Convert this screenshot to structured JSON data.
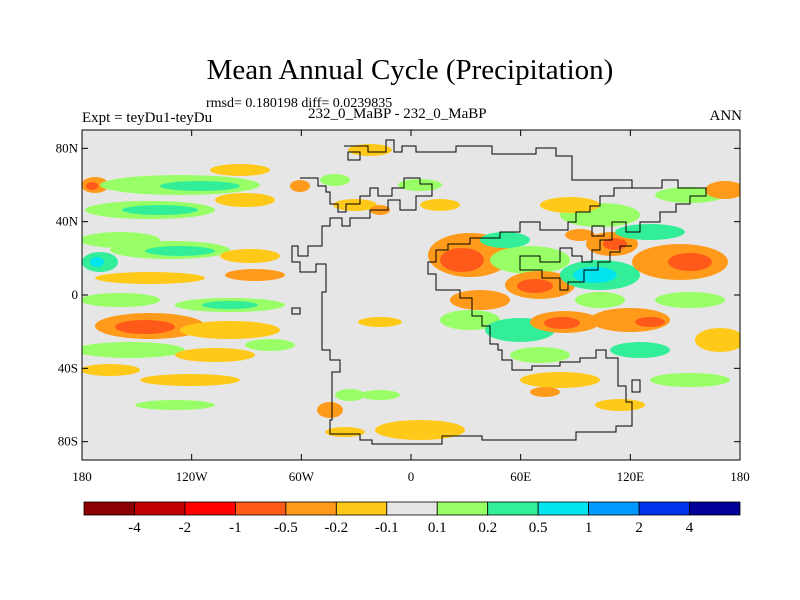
{
  "title": "Mean Annual Cycle (Precipitation)",
  "stats_line": "rmsd= 0.180198 diff= 0.0239835",
  "experiment_label": "Expt = teyDu1-teyDu",
  "comparison_label": "232_0_MaBP - 232_0_MaBP",
  "season": "ANN",
  "map": {
    "background_color": "#e6e6e6",
    "y_ticks": [
      {
        "label": "80N",
        "lat": 80
      },
      {
        "label": "40N",
        "lat": 40
      },
      {
        "label": "0",
        "lat": 0
      },
      {
        "label": "40S",
        "lat": -40
      },
      {
        "label": "80S",
        "lat": -80
      }
    ],
    "x_ticks": [
      {
        "label": "180",
        "lon": -180
      },
      {
        "label": "120W",
        "lon": -120
      },
      {
        "label": "60W",
        "lon": -60
      },
      {
        "label": "0",
        "lon": 0
      },
      {
        "label": "60E",
        "lon": 60
      },
      {
        "label": "120E",
        "lon": 120
      },
      {
        "label": "180",
        "lon": 180
      }
    ],
    "lat_range": [
      -90,
      90
    ],
    "lon_range": [
      -180,
      180
    ]
  },
  "colorbar": {
    "colors": [
      "#8b0000",
      "#c00000",
      "#ff0000",
      "#ff5a1a",
      "#ff9a1a",
      "#ffc91a",
      "#e6e6e6",
      "#99ff66",
      "#33ee99",
      "#00e5ee",
      "#0099ff",
      "#0033ee",
      "#000099"
    ],
    "labels": [
      "-4",
      "-2",
      "-1",
      "-0.5",
      "-0.2",
      "-0.1",
      "0.1",
      "0.2",
      "0.5",
      "1",
      "2",
      "4"
    ]
  }
}
